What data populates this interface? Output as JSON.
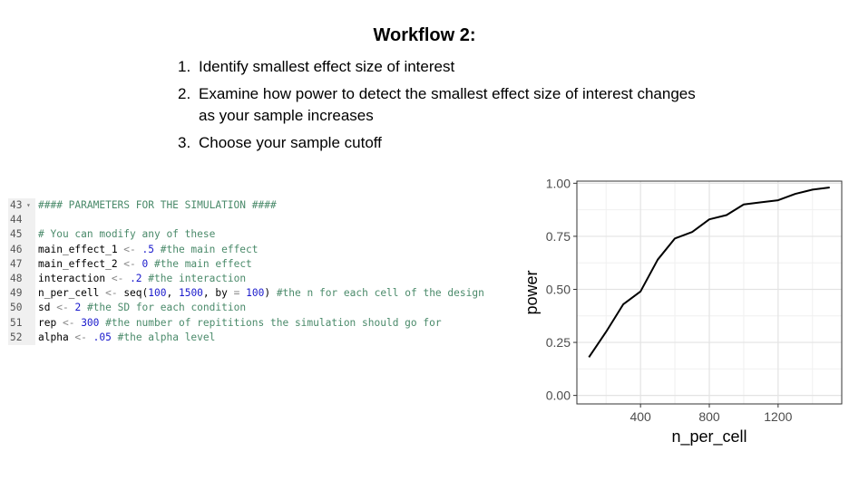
{
  "title": "Workflow 2:",
  "steps": [
    {
      "num": "1.",
      "text": "Identify smallest effect size of interest"
    },
    {
      "num": "2.",
      "text": "Examine how power to detect the smallest effect size of interest changes as your sample increases"
    },
    {
      "num": "3.",
      "text": "Choose your sample cutoff"
    }
  ],
  "code": {
    "lines": [
      {
        "n": "43",
        "tokens": [
          {
            "t": "#### PARAMETERS FOR THE SIMULATION ####",
            "c": "cm"
          }
        ]
      },
      {
        "n": "44",
        "tokens": []
      },
      {
        "n": "45",
        "tokens": [
          {
            "t": "# You can modify any of these",
            "c": "cm"
          }
        ]
      },
      {
        "n": "46",
        "tokens": [
          {
            "t": "main_effect_1 ",
            "c": ""
          },
          {
            "t": "<-",
            "c": "op"
          },
          {
            "t": " ",
            "c": ""
          },
          {
            "t": ".5",
            "c": "nm"
          },
          {
            "t": " #the main effect",
            "c": "cm"
          }
        ]
      },
      {
        "n": "47",
        "tokens": [
          {
            "t": "main_effect_2 ",
            "c": ""
          },
          {
            "t": "<-",
            "c": "op"
          },
          {
            "t": " ",
            "c": ""
          },
          {
            "t": "0",
            "c": "nm"
          },
          {
            "t": " #the main effect",
            "c": "cm"
          }
        ]
      },
      {
        "n": "48",
        "tokens": [
          {
            "t": "interaction ",
            "c": ""
          },
          {
            "t": "<-",
            "c": "op"
          },
          {
            "t": " ",
            "c": ""
          },
          {
            "t": ".2",
            "c": "nm"
          },
          {
            "t": " #the interaction",
            "c": "cm"
          }
        ]
      },
      {
        "n": "49",
        "tokens": [
          {
            "t": "n_per_cell ",
            "c": ""
          },
          {
            "t": "<-",
            "c": "op"
          },
          {
            "t": " seq(",
            "c": ""
          },
          {
            "t": "100",
            "c": "nm"
          },
          {
            "t": ", ",
            "c": ""
          },
          {
            "t": "1500",
            "c": "nm"
          },
          {
            "t": ", by ",
            "c": ""
          },
          {
            "t": "=",
            "c": "op"
          },
          {
            "t": " ",
            "c": ""
          },
          {
            "t": "100",
            "c": "nm"
          },
          {
            "t": ") ",
            "c": ""
          },
          {
            "t": "#the n for each cell of the design",
            "c": "cm"
          }
        ]
      },
      {
        "n": "50",
        "tokens": [
          {
            "t": "sd ",
            "c": ""
          },
          {
            "t": "<-",
            "c": "op"
          },
          {
            "t": " ",
            "c": ""
          },
          {
            "t": "2",
            "c": "nm"
          },
          {
            "t": " #the SD for each condition",
            "c": "cm"
          }
        ]
      },
      {
        "n": "51",
        "tokens": [
          {
            "t": "rep ",
            "c": ""
          },
          {
            "t": "<-",
            "c": "op"
          },
          {
            "t": " ",
            "c": ""
          },
          {
            "t": "300",
            "c": "nm"
          },
          {
            "t": " #the number of repititions the simulation should go for",
            "c": "cm"
          }
        ]
      },
      {
        "n": "52",
        "tokens": [
          {
            "t": "alpha ",
            "c": ""
          },
          {
            "t": "<-",
            "c": "op"
          },
          {
            "t": " ",
            "c": ""
          },
          {
            "t": ".05",
            "c": "nm"
          },
          {
            "t": " #the alpha level",
            "c": "cm"
          }
        ]
      }
    ],
    "fold_icon": "fold-triangle-icon"
  },
  "chart_data": {
    "type": "line",
    "xlabel": "n_per_cell",
    "ylabel": "power",
    "xlim": [
      30,
      1570
    ],
    "ylim": [
      -0.04,
      1.01
    ],
    "x_ticks": [
      400,
      800,
      1200
    ],
    "x_tick_labels": [
      "400",
      "800",
      "1200"
    ],
    "y_ticks": [
      0,
      0.25,
      0.5,
      0.75,
      1.0
    ],
    "y_tick_labels": [
      "0.00",
      "0.25",
      "0.50",
      "0.75",
      "1.00"
    ],
    "grid": true,
    "x": [
      100,
      200,
      300,
      400,
      500,
      600,
      700,
      800,
      900,
      1000,
      1100,
      1200,
      1300,
      1400,
      1500
    ],
    "y": [
      0.18,
      0.3,
      0.43,
      0.49,
      0.64,
      0.74,
      0.77,
      0.83,
      0.85,
      0.9,
      0.91,
      0.92,
      0.95,
      0.97,
      0.98
    ],
    "line_color": "#000000"
  }
}
